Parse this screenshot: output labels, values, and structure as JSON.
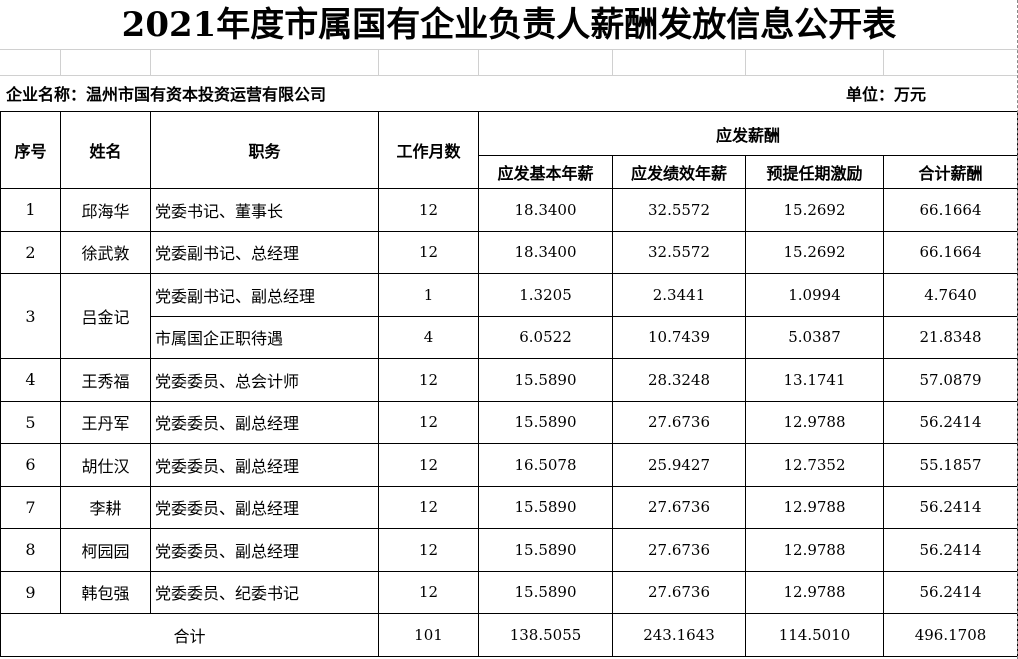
{
  "title": "2021年度市属国有企业负责人薪酬发放信息公开表",
  "company_label": "企业名称：温州市国有资本投资运营有限公司",
  "unit_label": "单位：万元",
  "headers": {
    "seq": "序号",
    "name": "姓名",
    "position": "职务",
    "months": "工作月数",
    "pay_group": "应发薪酬",
    "basic": "应发基本年薪",
    "performance": "应发绩效年薪",
    "incentive": "预提任期激励",
    "total": "合计薪酬"
  },
  "rows": [
    {
      "seq": "1",
      "name": "邱海华",
      "entries": [
        {
          "position": "党委书记、董事长",
          "months": "12",
          "basic": "18.3400",
          "performance": "32.5572",
          "incentive": "15.2692",
          "total": "66.1664"
        }
      ]
    },
    {
      "seq": "2",
      "name": "徐武敦",
      "entries": [
        {
          "position": "党委副书记、总经理",
          "months": "12",
          "basic": "18.3400",
          "performance": "32.5572",
          "incentive": "15.2692",
          "total": "66.1664"
        }
      ]
    },
    {
      "seq": "3",
      "name": "吕金记",
      "entries": [
        {
          "position": "党委副书记、副总经理",
          "months": "1",
          "basic": "1.3205",
          "performance": "2.3441",
          "incentive": "1.0994",
          "total": "4.7640"
        },
        {
          "position": "市属国企正职待遇",
          "months": "4",
          "basic": "6.0522",
          "performance": "10.7439",
          "incentive": "5.0387",
          "total": "21.8348"
        }
      ]
    },
    {
      "seq": "4",
      "name": "王秀福",
      "entries": [
        {
          "position": "党委委员、总会计师",
          "months": "12",
          "basic": "15.5890",
          "performance": "28.3248",
          "incentive": "13.1741",
          "total": "57.0879"
        }
      ]
    },
    {
      "seq": "5",
      "name": "王丹军",
      "entries": [
        {
          "position": "党委委员、副总经理",
          "months": "12",
          "basic": "15.5890",
          "performance": "27.6736",
          "incentive": "12.9788",
          "total": "56.2414"
        }
      ]
    },
    {
      "seq": "6",
      "name": "胡仕汉",
      "entries": [
        {
          "position": "党委委员、副总经理",
          "months": "12",
          "basic": "16.5078",
          "performance": "25.9427",
          "incentive": "12.7352",
          "total": "55.1857"
        }
      ]
    },
    {
      "seq": "7",
      "name": "李耕",
      "entries": [
        {
          "position": "党委委员、副总经理",
          "months": "12",
          "basic": "15.5890",
          "performance": "27.6736",
          "incentive": "12.9788",
          "total": "56.2414"
        }
      ]
    },
    {
      "seq": "8",
      "name": "柯园园",
      "entries": [
        {
          "position": "党委委员、副总经理",
          "months": "12",
          "basic": "15.5890",
          "performance": "27.6736",
          "incentive": "12.9788",
          "total": "56.2414"
        }
      ]
    },
    {
      "seq": "9",
      "name": "韩包强",
      "entries": [
        {
          "position": "党委委员、纪委书记",
          "months": "12",
          "basic": "15.5890",
          "performance": "27.6736",
          "incentive": "12.9788",
          "total": "56.2414"
        }
      ]
    }
  ],
  "totals": {
    "label": "合计",
    "months": "101",
    "basic": "138.5055",
    "performance": "243.1643",
    "incentive": "114.5010",
    "total": "496.1708"
  }
}
